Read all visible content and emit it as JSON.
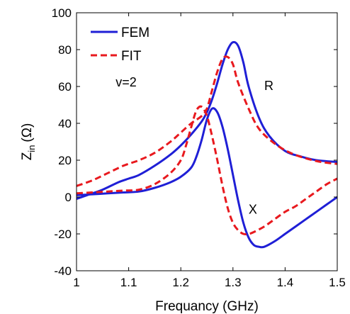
{
  "chart_data": {
    "type": "line",
    "title": "",
    "xlabel": "Frequancy (GHz)",
    "ylabel": "Z",
    "ylabel_sub": "in",
    "ylabel_unit": "(Ω)",
    "xlim": [
      1,
      1.5
    ],
    "ylim": [
      -40,
      100
    ],
    "x_ticks": [
      1,
      1.1,
      1.2,
      1.3,
      1.4,
      1.5
    ],
    "x_tick_labels": [
      "1",
      "1.1",
      "1.2",
      "1.3",
      "1.4",
      "1.5"
    ],
    "y_ticks": [
      -40,
      -20,
      0,
      20,
      40,
      60,
      80,
      100
    ],
    "y_tick_labels": [
      "-40",
      "-20",
      "0",
      "20",
      "40",
      "60",
      "80",
      "100"
    ],
    "grid": false,
    "legend_position": "top-left",
    "legend": [
      {
        "label": "FEM",
        "color": "#1f1fd6",
        "style": "solid"
      },
      {
        "label": "FIT",
        "color": "#e8191e",
        "style": "dashed"
      }
    ],
    "annotations": [
      {
        "text": "v=2",
        "x": 1.075,
        "y": 60
      },
      {
        "text": "R",
        "x": 1.36,
        "y": 58
      },
      {
        "text": "X",
        "x": 1.33,
        "y": -9
      }
    ],
    "series": [
      {
        "name": "FEM",
        "part": "R",
        "color": "#1f1fd6",
        "style": "solid",
        "x": [
          1.0,
          1.02,
          1.05,
          1.08,
          1.1,
          1.12,
          1.15,
          1.18,
          1.2,
          1.22,
          1.24,
          1.25,
          1.26,
          1.27,
          1.28,
          1.29,
          1.3,
          1.31,
          1.32,
          1.33,
          1.35,
          1.37,
          1.4,
          1.43,
          1.46,
          1.5
        ],
        "values": [
          -1,
          1,
          4,
          8,
          10,
          12,
          17,
          23,
          28,
          34,
          41,
          46,
          53,
          62,
          72,
          80,
          84,
          82,
          73,
          60,
          43,
          33,
          25,
          22,
          20,
          19
        ]
      },
      {
        "name": "FEM",
        "part": "X",
        "color": "#1f1fd6",
        "style": "solid",
        "x": [
          1.0,
          1.03,
          1.06,
          1.09,
          1.12,
          1.15,
          1.18,
          1.2,
          1.22,
          1.23,
          1.24,
          1.25,
          1.26,
          1.27,
          1.28,
          1.29,
          1.3,
          1.31,
          1.32,
          1.33,
          1.34,
          1.35,
          1.36,
          1.38,
          1.4,
          1.42,
          1.44,
          1.46,
          1.48,
          1.5
        ],
        "values": [
          1,
          1.5,
          2,
          2.5,
          3,
          5,
          8,
          11,
          16,
          22,
          31,
          42,
          48,
          46,
          38,
          26,
          12,
          -2,
          -14,
          -22,
          -26,
          -27,
          -27,
          -24,
          -20,
          -16,
          -12,
          -8,
          -4,
          0
        ]
      },
      {
        "name": "FIT",
        "part": "R",
        "color": "#e8191e",
        "style": "dashed",
        "x": [
          1.0,
          1.03,
          1.06,
          1.09,
          1.12,
          1.15,
          1.18,
          1.2,
          1.22,
          1.24,
          1.25,
          1.26,
          1.27,
          1.28,
          1.29,
          1.3,
          1.31,
          1.33,
          1.35,
          1.38,
          1.41,
          1.44,
          1.47,
          1.5
        ],
        "values": [
          6,
          9,
          13,
          17,
          20,
          24,
          30,
          35,
          40,
          44,
          48,
          58,
          68,
          75,
          76,
          72,
          62,
          48,
          37,
          29,
          24,
          21,
          19,
          18
        ]
      },
      {
        "name": "FIT",
        "part": "X",
        "color": "#e8191e",
        "style": "dashed",
        "x": [
          1.0,
          1.03,
          1.06,
          1.09,
          1.12,
          1.15,
          1.18,
          1.2,
          1.21,
          1.22,
          1.23,
          1.24,
          1.25,
          1.26,
          1.27,
          1.28,
          1.29,
          1.3,
          1.31,
          1.32,
          1.33,
          1.34,
          1.36,
          1.38,
          1.4,
          1.42,
          1.44,
          1.46,
          1.48,
          1.5
        ],
        "values": [
          2,
          2.5,
          3,
          3.5,
          4,
          7,
          13,
          20,
          28,
          38,
          47,
          49,
          44,
          33,
          20,
          6,
          -6,
          -14,
          -18,
          -20,
          -20,
          -19,
          -16,
          -12,
          -8,
          -5,
          -1,
          3,
          7,
          10
        ]
      }
    ]
  }
}
